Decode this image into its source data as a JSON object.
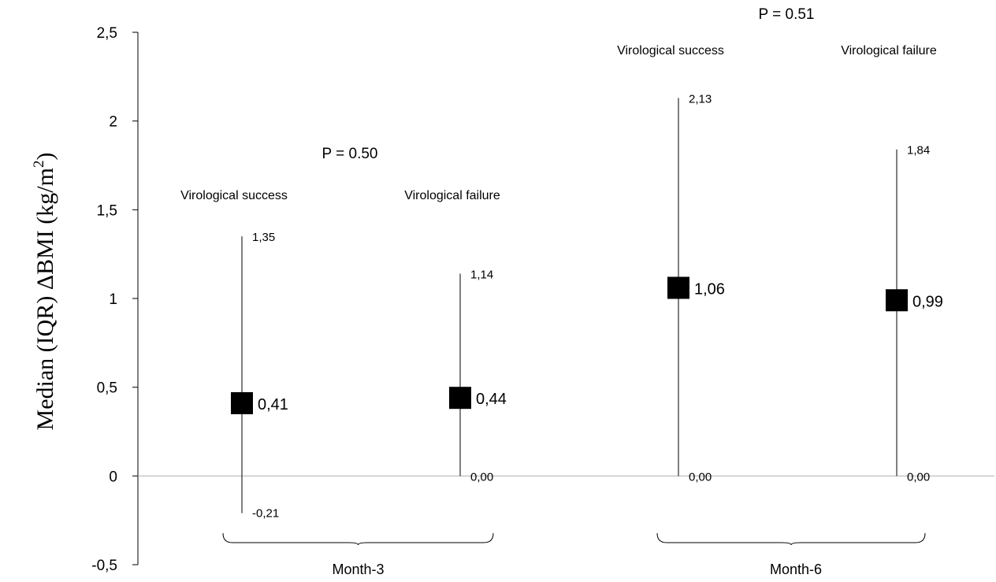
{
  "chart_data": {
    "type": "scatter",
    "ylabel": "Median (IQR) ΔBMI (kg/m²)",
    "ylabel_parts": {
      "main": "Median (IQR) ΔBMI (kg/m",
      "sup": "2",
      "close": ")"
    },
    "ylim": [
      -0.5,
      2.5
    ],
    "yticks": [
      -0.5,
      0,
      0.5,
      1,
      1.5,
      2,
      2.5
    ],
    "ytick_labels": [
      "-0,5",
      "0",
      "0,5",
      "1",
      "1,5",
      "2",
      "2,5"
    ],
    "grid": false,
    "zero_line": true,
    "marker_color": "#000000",
    "line_color": "#000000",
    "zero_line_color": "#b0b0b0",
    "timepoints": [
      {
        "label": "Month-3",
        "p_value": "P = 0.50",
        "groups": [
          {
            "name": "Virological success",
            "median": 0.41,
            "q1": -0.21,
            "q3": 1.35,
            "median_label": "0,41",
            "q1_label": "-0,21",
            "q3_label": "1,35"
          },
          {
            "name": "Virological failure",
            "median": 0.44,
            "q1": 0.0,
            "q3": 1.14,
            "median_label": "0,44",
            "q1_label": "0,00",
            "q3_label": "1,14"
          }
        ]
      },
      {
        "label": "Month-6",
        "p_value": "P = 0.51",
        "groups": [
          {
            "name": "Virological success",
            "median": 1.06,
            "q1": 0.0,
            "q3": 2.13,
            "median_label": "1,06",
            "q1_label": "0,00",
            "q3_label": "2,13"
          },
          {
            "name": "Virological failure",
            "median": 0.99,
            "q1": 0.0,
            "q3": 1.84,
            "median_label": "0,99",
            "q1_label": "0,00",
            "q3_label": "1,84"
          }
        ]
      }
    ]
  }
}
